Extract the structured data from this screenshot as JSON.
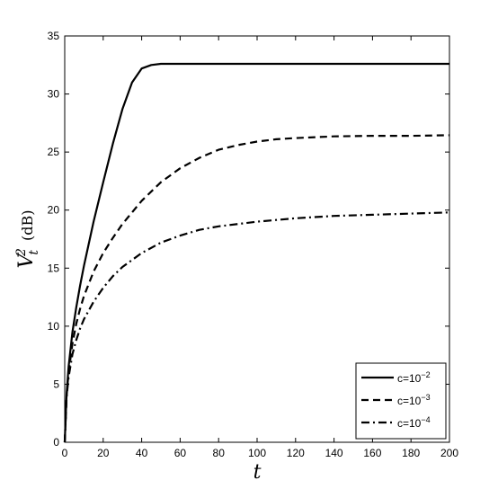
{
  "chart_data": {
    "type": "line",
    "xlabel": "t",
    "ylabel_main": "V",
    "ylabel_sup": "2",
    "ylabel_sub": "t",
    "ylabel_unit": "(dB)",
    "xlim": [
      0,
      200
    ],
    "ylim": [
      0,
      35
    ],
    "xticks": [
      0,
      20,
      40,
      60,
      80,
      100,
      120,
      140,
      160,
      180,
      200
    ],
    "yticks": [
      0,
      5,
      10,
      15,
      20,
      25,
      30,
      35
    ],
    "grid": false,
    "legend_position": "bottom-right",
    "series": [
      {
        "name": "c=10",
        "name_exp": "−2",
        "dash": "solid",
        "x": [
          0,
          1,
          2,
          4,
          6,
          8,
          10,
          15,
          20,
          25,
          30,
          35,
          40,
          45,
          50,
          55,
          60,
          70,
          80,
          100,
          120,
          140,
          160,
          180,
          200
        ],
        "y": [
          0,
          4.2,
          6.5,
          9.5,
          11.6,
          13.5,
          15.2,
          19.0,
          22.4,
          25.7,
          28.7,
          31.0,
          32.2,
          32.5,
          32.6,
          32.6,
          32.6,
          32.6,
          32.6,
          32.6,
          32.6,
          32.6,
          32.6,
          32.6,
          32.6
        ]
      },
      {
        "name": "c=10",
        "name_exp": "−3",
        "dash": "dashed",
        "x": [
          0,
          1,
          2,
          4,
          6,
          8,
          10,
          15,
          20,
          25,
          30,
          40,
          50,
          60,
          70,
          80,
          90,
          100,
          110,
          120,
          140,
          160,
          180,
          200
        ],
        "y": [
          0,
          4.0,
          6.0,
          8.5,
          10.2,
          11.5,
          12.6,
          14.7,
          16.3,
          17.6,
          18.8,
          20.8,
          22.4,
          23.6,
          24.5,
          25.2,
          25.6,
          25.9,
          26.1,
          26.2,
          26.35,
          26.4,
          26.4,
          26.45
        ]
      },
      {
        "name": "c=10",
        "name_exp": "−4",
        "dash": "dashdot",
        "x": [
          0,
          1,
          2,
          4,
          6,
          8,
          10,
          15,
          20,
          25,
          30,
          40,
          50,
          60,
          70,
          80,
          100,
          120,
          140,
          160,
          180,
          200
        ],
        "y": [
          0,
          3.9,
          5.6,
          7.6,
          8.8,
          9.8,
          10.6,
          12.1,
          13.3,
          14.3,
          15.1,
          16.3,
          17.2,
          17.8,
          18.3,
          18.6,
          19.0,
          19.3,
          19.5,
          19.6,
          19.7,
          19.8
        ]
      }
    ]
  }
}
